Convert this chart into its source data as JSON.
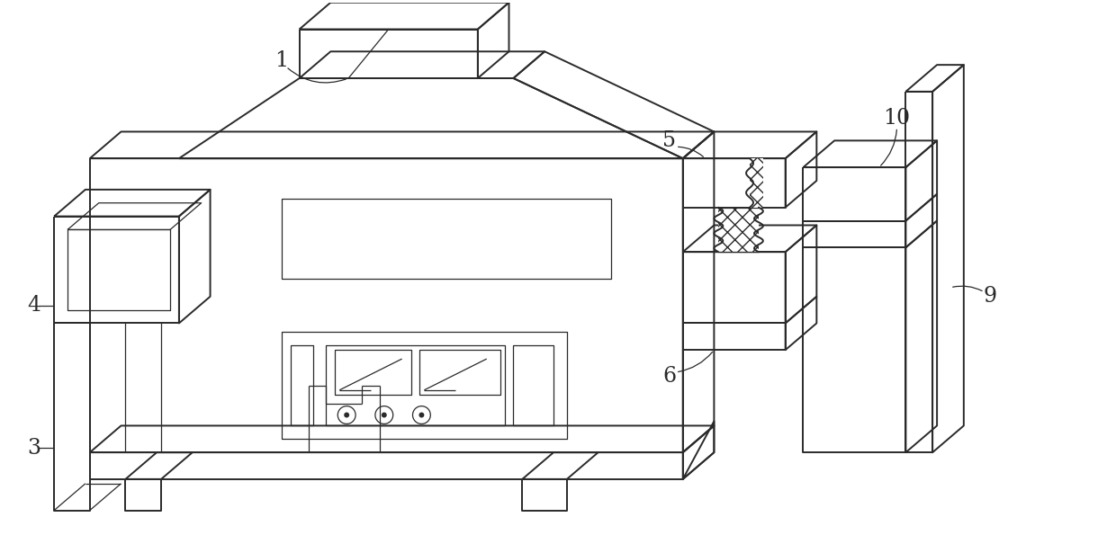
{
  "bg_color": "#ffffff",
  "line_color": "#2a2a2a",
  "line_width": 1.4,
  "thin_lw": 0.9
}
